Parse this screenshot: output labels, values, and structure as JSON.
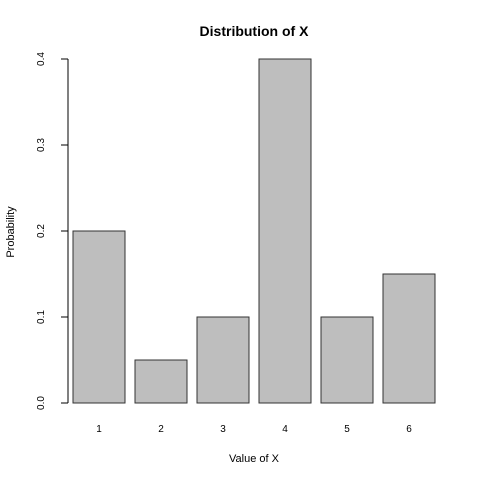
{
  "chart_data": {
    "type": "bar",
    "title": "Distribution of X",
    "xlabel": "Value of X",
    "ylabel": "Probability",
    "categories": [
      "1",
      "2",
      "3",
      "4",
      "5",
      "6"
    ],
    "values": [
      0.2,
      0.05,
      0.1,
      0.4,
      0.1,
      0.15
    ],
    "ylim": [
      0,
      0.4
    ],
    "yticks": [
      "0.0",
      "0.1",
      "0.2",
      "0.3",
      "0.4"
    ],
    "grid": false,
    "colors": {
      "bar_fill": "#bebebe",
      "bar_stroke": "#333333",
      "axis": "#000000",
      "background": "#ffffff"
    }
  }
}
